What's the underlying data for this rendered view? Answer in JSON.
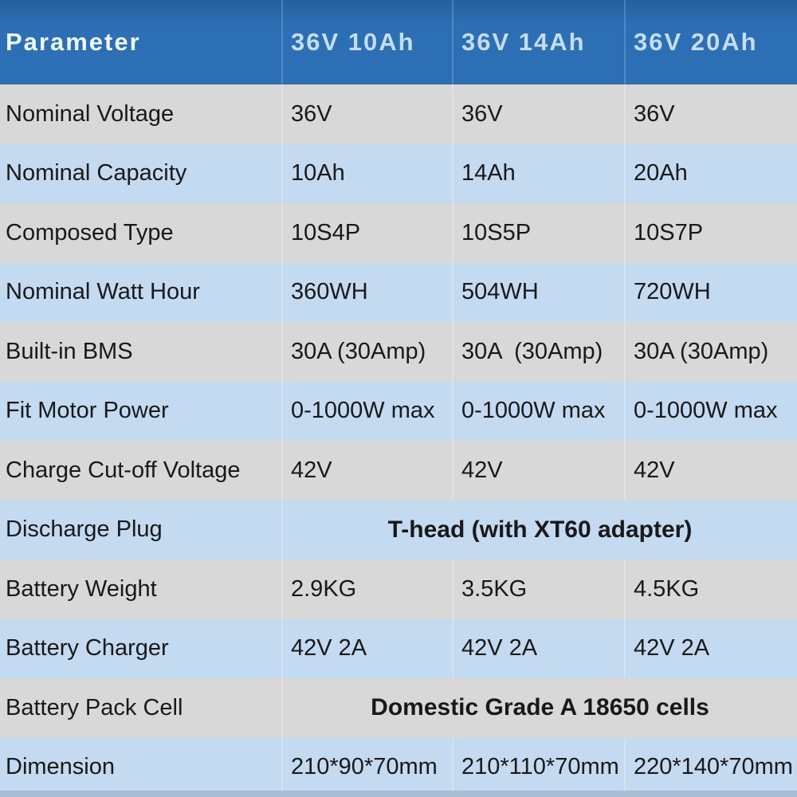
{
  "colors": {
    "header_bg": "#2d6fb5",
    "header_param_text": "#eff7fd",
    "header_col_text": "#c6dcf1",
    "row_gray": "#d8d8d8",
    "row_blue": "#c3daf0",
    "body_text": "#191919",
    "bottom_strip": "#a9bed5"
  },
  "table": {
    "header": {
      "param": "Parameter",
      "cols": [
        "36V 10Ah",
        "36V 14Ah",
        "36V 20Ah"
      ]
    },
    "rows": [
      {
        "label": "Nominal Voltage",
        "values": [
          "36V",
          "36V",
          "36V"
        ]
      },
      {
        "label": "Nominal Capacity",
        "values": [
          "10Ah",
          "14Ah",
          "20Ah"
        ]
      },
      {
        "label": "Composed Type",
        "values": [
          "10S4P",
          "10S5P",
          "10S7P"
        ]
      },
      {
        "label": "Nominal Watt Hour",
        "values": [
          "360WH",
          "504WH",
          "720WH"
        ]
      },
      {
        "label": "Built-in BMS",
        "values": [
          "30A (30Amp)",
          "30A  (30Amp)",
          "30A (30Amp)"
        ]
      },
      {
        "label": "Fit Motor Power",
        "values": [
          "0-1000W max",
          "0-1000W max",
          "0-1000W max"
        ]
      },
      {
        "label": "Charge Cut-off Voltage",
        "values": [
          "42V",
          "42V",
          "42V"
        ]
      },
      {
        "label": "Discharge Plug",
        "span": "T-head (with XT60 adapter)"
      },
      {
        "label": "Battery Weight",
        "values": [
          "2.9KG",
          "3.5KG",
          "4.5KG"
        ]
      },
      {
        "label": "Battery Charger",
        "values": [
          "42V 2A",
          "42V 2A",
          "42V 2A"
        ]
      },
      {
        "label": "Battery Pack Cell",
        "span": "Domestic Grade A 18650 cells"
      },
      {
        "label": "Dimension",
        "values": [
          "210*90*70mm",
          "210*110*70mm",
          "220*140*70mm"
        ]
      }
    ]
  }
}
